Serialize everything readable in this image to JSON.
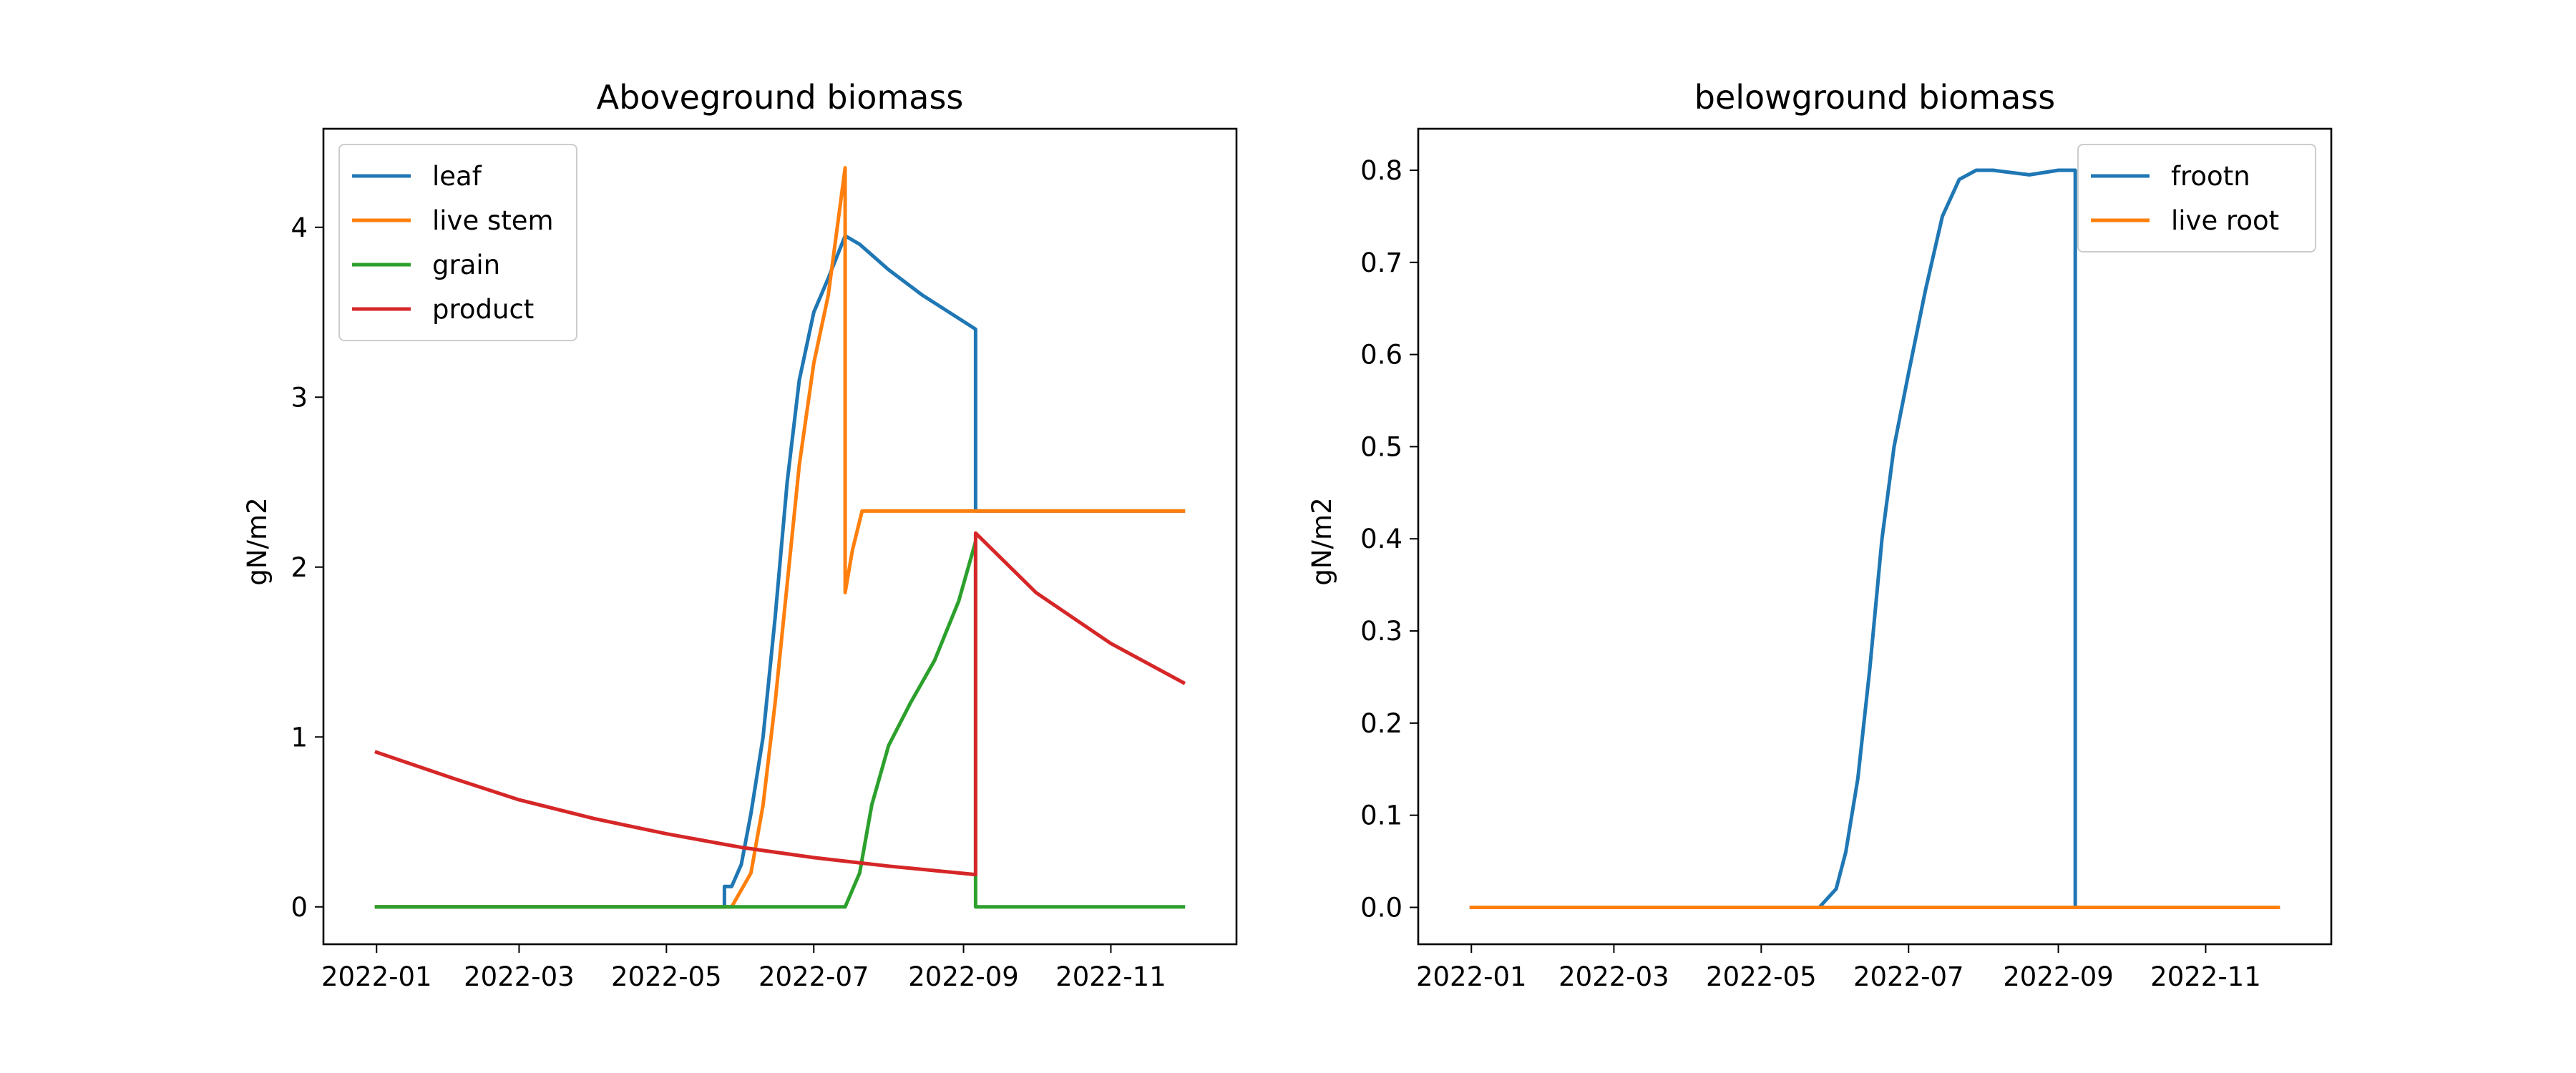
{
  "chart_data": [
    {
      "type": "line",
      "title": "Aboveground biomass",
      "xlabel": "",
      "ylabel": "gN/m2",
      "x_axis": "date",
      "xlim": [
        "2021-12-10",
        "2022-12-23"
      ],
      "ylim": [
        -0.22,
        4.58
      ],
      "x_ticks": [
        "2022-01",
        "2022-03",
        "2022-05",
        "2022-07",
        "2022-09",
        "2022-11"
      ],
      "y_ticks": [
        0,
        1,
        2,
        3,
        4
      ],
      "y_tick_labels": [
        "0",
        "1",
        "2",
        "3",
        "4"
      ],
      "grid": false,
      "legend": "upper-left",
      "series": [
        {
          "name": "leaf",
          "color": "#1f77b4",
          "points": [
            [
              "2022-01-01",
              0
            ],
            [
              "2022-05-25",
              0
            ],
            [
              "2022-05-25",
              0.12
            ],
            [
              "2022-05-28",
              0.12
            ],
            [
              "2022-06-01",
              0.25
            ],
            [
              "2022-06-05",
              0.55
            ],
            [
              "2022-06-10",
              1.0
            ],
            [
              "2022-06-15",
              1.7
            ],
            [
              "2022-06-20",
              2.5
            ],
            [
              "2022-06-25",
              3.1
            ],
            [
              "2022-07-01",
              3.5
            ],
            [
              "2022-07-07",
              3.7
            ],
            [
              "2022-07-14",
              3.95
            ],
            [
              "2022-07-20",
              3.9
            ],
            [
              "2022-08-01",
              3.75
            ],
            [
              "2022-08-15",
              3.6
            ],
            [
              "2022-09-06",
              3.4
            ],
            [
              "2022-09-06",
              2.33
            ],
            [
              "2022-12-01",
              2.33
            ]
          ]
        },
        {
          "name": "live stem",
          "color": "#ff7f0e",
          "points": [
            [
              "2022-01-01",
              0
            ],
            [
              "2022-05-28",
              0
            ],
            [
              "2022-06-05",
              0.2
            ],
            [
              "2022-06-10",
              0.6
            ],
            [
              "2022-06-15",
              1.2
            ],
            [
              "2022-06-20",
              1.9
            ],
            [
              "2022-06-25",
              2.6
            ],
            [
              "2022-07-01",
              3.2
            ],
            [
              "2022-07-07",
              3.6
            ],
            [
              "2022-07-14",
              4.35
            ],
            [
              "2022-07-14",
              1.85
            ],
            [
              "2022-07-17",
              2.1
            ],
            [
              "2022-07-21",
              2.33
            ],
            [
              "2022-09-06",
              2.33
            ],
            [
              "2022-12-01",
              2.33
            ]
          ]
        },
        {
          "name": "grain",
          "color": "#2ca02c",
          "points": [
            [
              "2022-01-01",
              0
            ],
            [
              "2022-07-14",
              0
            ],
            [
              "2022-07-20",
              0.2
            ],
            [
              "2022-07-25",
              0.6
            ],
            [
              "2022-08-01",
              0.95
            ],
            [
              "2022-08-10",
              1.2
            ],
            [
              "2022-08-20",
              1.45
            ],
            [
              "2022-08-30",
              1.8
            ],
            [
              "2022-09-06",
              2.15
            ],
            [
              "2022-09-06",
              0
            ],
            [
              "2022-12-01",
              0
            ]
          ]
        },
        {
          "name": "product",
          "color": "#d62728",
          "points": [
            [
              "2022-01-01",
              0.91
            ],
            [
              "2022-02-01",
              0.76
            ],
            [
              "2022-03-01",
              0.63
            ],
            [
              "2022-04-01",
              0.52
            ],
            [
              "2022-05-01",
              0.43
            ],
            [
              "2022-06-01",
              0.35
            ],
            [
              "2022-07-01",
              0.29
            ],
            [
              "2022-08-01",
              0.24
            ],
            [
              "2022-09-06",
              0.19
            ],
            [
              "2022-09-06",
              2.2
            ],
            [
              "2022-10-01",
              1.85
            ],
            [
              "2022-11-01",
              1.55
            ],
            [
              "2022-12-01",
              1.32
            ]
          ]
        }
      ]
    },
    {
      "type": "line",
      "title": "belowground biomass",
      "xlabel": "",
      "ylabel": "gN/m2",
      "x_axis": "date",
      "xlim": [
        "2021-12-10",
        "2022-12-23"
      ],
      "ylim": [
        -0.04,
        0.845
      ],
      "x_ticks": [
        "2022-01",
        "2022-03",
        "2022-05",
        "2022-07",
        "2022-09",
        "2022-11"
      ],
      "y_ticks": [
        0,
        0.1,
        0.2,
        0.3,
        0.4,
        0.5,
        0.6,
        0.7,
        0.8
      ],
      "y_tick_labels": [
        "0.0",
        "0.1",
        "0.2",
        "0.3",
        "0.4",
        "0.5",
        "0.6",
        "0.7",
        "0.8"
      ],
      "grid": false,
      "legend": "upper-right",
      "series": [
        {
          "name": "frootn",
          "color": "#1f77b4",
          "points": [
            [
              "2022-01-01",
              0
            ],
            [
              "2022-05-25",
              0
            ],
            [
              "2022-06-01",
              0.02
            ],
            [
              "2022-06-05",
              0.06
            ],
            [
              "2022-06-10",
              0.14
            ],
            [
              "2022-06-15",
              0.26
            ],
            [
              "2022-06-20",
              0.4
            ],
            [
              "2022-06-25",
              0.5
            ],
            [
              "2022-07-01",
              0.58
            ],
            [
              "2022-07-08",
              0.67
            ],
            [
              "2022-07-15",
              0.75
            ],
            [
              "2022-07-22",
              0.79
            ],
            [
              "2022-07-29",
              0.8
            ],
            [
              "2022-08-05",
              0.8
            ],
            [
              "2022-08-20",
              0.795
            ],
            [
              "2022-09-01",
              0.8
            ],
            [
              "2022-09-08",
              0.8
            ],
            [
              "2022-09-08",
              0
            ],
            [
              "2022-12-01",
              0
            ]
          ]
        },
        {
          "name": "live root",
          "color": "#ff7f0e",
          "points": [
            [
              "2022-01-01",
              0
            ],
            [
              "2022-12-01",
              0
            ]
          ]
        }
      ]
    }
  ]
}
